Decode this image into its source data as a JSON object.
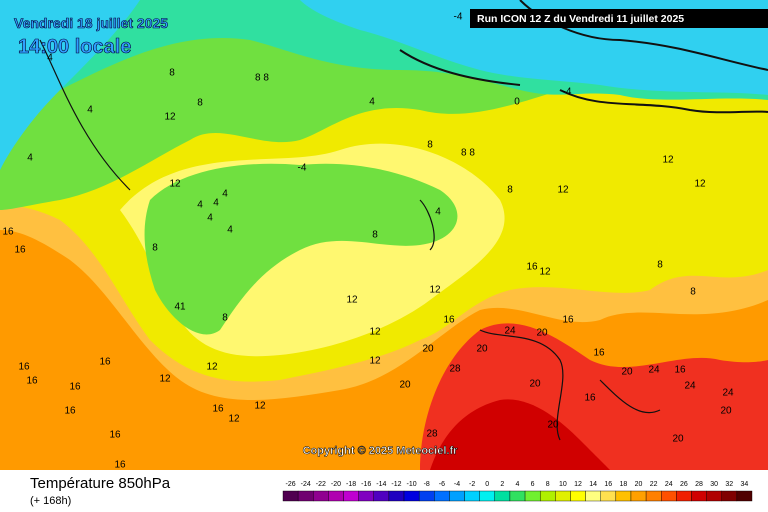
{
  "header": {
    "date": "Vendredi 18 juillet 2025",
    "time": "14:00 locale",
    "run": "Run ICON 12 Z du Vendredi 11 juillet 2025"
  },
  "copyright": "Copyright © 2025 Meteociel.fr",
  "footer": {
    "title": "Température 850hPa",
    "lead": "(+ 168h)"
  },
  "legend": {
    "labels": [
      "-26",
      "-24",
      "-22",
      "-20",
      "-18",
      "-16",
      "-14",
      "-12",
      "-10",
      "-8",
      "-6",
      "-4",
      "-2",
      "0",
      "2",
      "4",
      "6",
      "8",
      "10",
      "12",
      "14",
      "16",
      "18",
      "20",
      "22",
      "24",
      "26",
      "28",
      "30",
      "32",
      "34"
    ],
    "colors": [
      "#500050",
      "#700070",
      "#900090",
      "#b000b0",
      "#c000d0",
      "#8000c0",
      "#5000c0",
      "#2000c0",
      "#0000e0",
      "#0040f0",
      "#0070ff",
      "#00a0ff",
      "#00d0ff",
      "#00f0f0",
      "#00e0a0",
      "#30e060",
      "#70f030",
      "#b0f000",
      "#e0f000",
      "#ffff00",
      "#ffff80",
      "#ffe050",
      "#ffc000",
      "#ffa000",
      "#ff8000",
      "#ff5000",
      "#f02000",
      "#d00000",
      "#b00000",
      "#800000",
      "#500000"
    ]
  },
  "contours": [
    "-4",
    "4",
    "0",
    "-4",
    "4",
    "8",
    "8 8",
    "8",
    "4",
    "12",
    "4",
    "-4",
    "12",
    "8",
    "8",
    "8 8",
    "12",
    "12",
    "4",
    "4",
    "4",
    "4",
    "4",
    "8",
    "4",
    "8",
    "12",
    "16",
    "16",
    "16",
    "12",
    "41",
    "8",
    "12",
    "12",
    "16",
    "20",
    "16",
    "20",
    "24",
    "20",
    "16",
    "28",
    "20",
    "24",
    "20",
    "28",
    "20",
    "16",
    "12",
    "16",
    "16",
    "16",
    "16",
    "12",
    "16",
    "20",
    "24",
    "24",
    "20",
    "16",
    "16",
    "20",
    "12",
    "12",
    "12",
    "12",
    "8",
    "8",
    "16",
    "16"
  ]
}
